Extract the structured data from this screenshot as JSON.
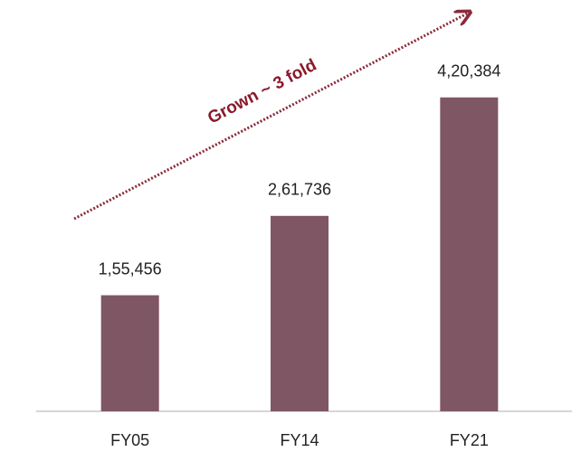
{
  "chart_data": {
    "type": "bar",
    "categories": [
      "FY05",
      "FY14",
      "FY21"
    ],
    "values": [
      155456,
      261736,
      420384
    ],
    "value_labels": [
      "1,55,456",
      "2,61,736",
      "4,20,384"
    ],
    "color": "#7f5664",
    "ylim": [
      0,
      500000
    ],
    "annotation": "Grown ~ 3 fold"
  }
}
